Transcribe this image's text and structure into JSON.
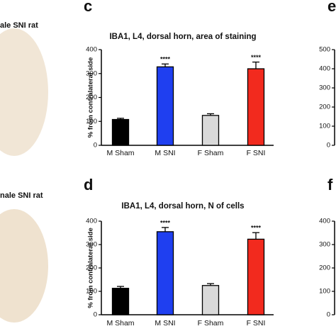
{
  "chart_data": [
    {
      "type": "bar",
      "panel": "c",
      "title": "IBA1, L4, dorsal horn, area of staining",
      "y_label": "% from contralateral side",
      "categories": [
        "M Sham",
        "M SNI",
        "F Sham",
        "F SNI"
      ],
      "values": [
        108,
        328,
        125,
        320
      ],
      "errors": [
        5,
        12,
        7,
        28
      ],
      "colors": [
        "#000000",
        "#1f3ff0",
        "#d9d9d9",
        "#f22a1e"
      ],
      "significance": [
        null,
        "****",
        null,
        "****"
      ],
      "ylim": [
        0,
        400
      ],
      "yticks": [
        0,
        100,
        200,
        300,
        400
      ]
    },
    {
      "type": "bar",
      "panel": "d",
      "title": "IBA1, L4, dorsal horn, N of cells",
      "y_label": "% from contralateral side",
      "categories": [
        "M Sham",
        "M SNI",
        "F Sham",
        "F SNI"
      ],
      "values": [
        113,
        355,
        125,
        323
      ],
      "errors": [
        8,
        18,
        8,
        28
      ],
      "colors": [
        "#000000",
        "#1f3ff0",
        "#d9d9d9",
        "#f22a1e"
      ],
      "significance": [
        null,
        "****",
        null,
        "****"
      ],
      "ylim": [
        0,
        400
      ],
      "yticks": [
        0,
        100,
        200,
        300,
        400
      ]
    }
  ],
  "left_labels": [
    "ale SNI rat",
    "nale SNI rat"
  ],
  "side_panels": [
    {
      "letter": "e",
      "ylim": [
        0,
        500
      ],
      "yticks": [
        0,
        100,
        200,
        300,
        400,
        500
      ]
    },
    {
      "letter": "f",
      "ylim": [
        0,
        400
      ],
      "yticks": [
        0,
        100,
        200,
        300,
        400
      ]
    }
  ]
}
